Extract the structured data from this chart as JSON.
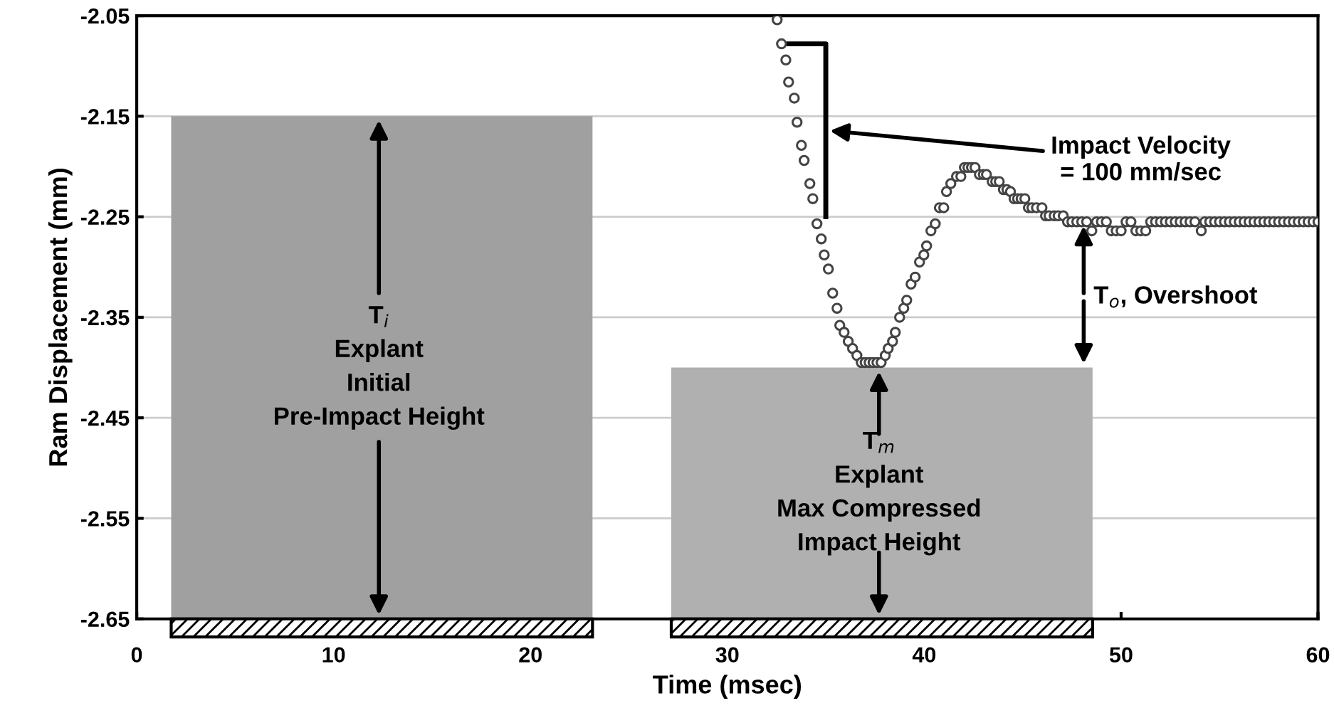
{
  "chart_data": {
    "type": "scatter",
    "xlabel": "Time (msec)",
    "ylabel": "Ram Displacement (mm)",
    "xlim": [
      0,
      60
    ],
    "xticks": [
      0,
      10,
      20,
      30,
      40,
      50,
      60
    ],
    "ylim": [
      -2.65,
      -2.05
    ],
    "yticks": [
      {
        "value": -2.65,
        "label": "-2.65"
      },
      {
        "value": -2.55,
        "label": "-2.55"
      },
      {
        "value": -2.45,
        "label": "-2.45"
      },
      {
        "value": -2.35,
        "label": "-2.35"
      },
      {
        "value": -2.25,
        "label": "-2.25"
      },
      {
        "value": -2.15,
        "label": "-2.15"
      },
      {
        "value": -2.05,
        "label": "-2.05"
      }
    ],
    "grid": "y",
    "series": [
      {
        "type": "bar",
        "x": [
          12.45,
          37.85
        ],
        "base": [
          -2.65,
          -2.65
        ],
        "values": [
          0.5,
          0.25
        ],
        "colors": [
          "#a0a0a0",
          "#b0b0b0"
        ]
      },
      {
        "type": "line",
        "color": "#000000",
        "x": [
          33.0,
          35.0,
          35.0
        ],
        "values": [
          -2.078,
          -2.078,
          -2.25
        ]
      },
      {
        "color": "#444444",
        "marker": "circle",
        "x": [
          32.53,
          32.75,
          32.97,
          33.11,
          33.4,
          33.54,
          33.76,
          33.9,
          34.19,
          34.34,
          34.55,
          34.77,
          34.92,
          35.13,
          35.35,
          35.57,
          35.71,
          35.93,
          36.14,
          36.36,
          36.58,
          36.8,
          37.0,
          37.2,
          37.4,
          37.6,
          37.81,
          38.02,
          38.17,
          38.39,
          38.53,
          38.75,
          38.96,
          39.11,
          39.33,
          39.54,
          39.76,
          39.98,
          40.12,
          40.34,
          40.56,
          40.77,
          40.99,
          41.13,
          41.35,
          41.64,
          41.86,
          42.04,
          42.22,
          42.4,
          42.58,
          42.8,
          43.0,
          43.16,
          43.45,
          43.63,
          43.81,
          44.02,
          44.2,
          44.38,
          44.56,
          44.74,
          44.92,
          45.11,
          45.29,
          45.47,
          45.7,
          45.98,
          46.16,
          46.34,
          46.6,
          46.8,
          47.06,
          47.28,
          47.5,
          47.75,
          48.0,
          48.25,
          48.51,
          48.75,
          49.0,
          49.25,
          49.5,
          49.75,
          50.0,
          50.25,
          50.5,
          50.75,
          51.0,
          51.25,
          51.5,
          51.75,
          52.0,
          52.25,
          52.5,
          52.75,
          53.0,
          53.25,
          53.5,
          53.75,
          54.07,
          54.25,
          54.5,
          54.75,
          55.0,
          55.25,
          55.5,
          55.75,
          56.0,
          56.25,
          56.5,
          56.75,
          57.0,
          57.25,
          57.5,
          57.75,
          58.0,
          58.25,
          58.5,
          58.75,
          59.0,
          59.25,
          59.5,
          59.75,
          60.0
        ],
        "values": [
          -2.054,
          -2.078,
          -2.094,
          -2.116,
          -2.132,
          -2.156,
          -2.179,
          -2.194,
          -2.217,
          -2.232,
          -2.257,
          -2.272,
          -2.288,
          -2.302,
          -2.326,
          -2.341,
          -2.358,
          -2.365,
          -2.374,
          -2.381,
          -2.388,
          -2.395,
          -2.395,
          -2.395,
          -2.395,
          -2.395,
          -2.395,
          -2.388,
          -2.381,
          -2.374,
          -2.365,
          -2.35,
          -2.341,
          -2.333,
          -2.317,
          -2.31,
          -2.295,
          -2.288,
          -2.279,
          -2.264,
          -2.257,
          -2.241,
          -2.241,
          -2.225,
          -2.217,
          -2.21,
          -2.21,
          -2.201,
          -2.201,
          -2.201,
          -2.201,
          -2.208,
          -2.208,
          -2.208,
          -2.215,
          -2.215,
          -2.215,
          -2.223,
          -2.223,
          -2.225,
          -2.232,
          -2.232,
          -2.232,
          -2.232,
          -2.241,
          -2.241,
          -2.241,
          -2.241,
          -2.249,
          -2.249,
          -2.249,
          -2.249,
          -2.249,
          -2.255,
          -2.255,
          -2.255,
          -2.255,
          -2.255,
          -2.264,
          -2.255,
          -2.255,
          -2.255,
          -2.264,
          -2.264,
          -2.264,
          -2.255,
          -2.255,
          -2.264,
          -2.264,
          -2.264,
          -2.255,
          -2.255,
          -2.255,
          -2.255,
          -2.255,
          -2.255,
          -2.255,
          -2.255,
          -2.255,
          -2.255,
          -2.264,
          -2.255,
          -2.255,
          -2.255,
          -2.255,
          -2.255,
          -2.255,
          -2.255,
          -2.255,
          -2.255,
          -2.255,
          -2.255,
          -2.255,
          -2.255,
          -2.255,
          -2.255,
          -2.255,
          -2.255,
          -2.255,
          -2.255,
          -2.255,
          -2.255,
          -2.255,
          -2.255,
          -2.255
        ]
      }
    ],
    "annotations": [
      "T$_{i}$\nExplant\nInitial\nPre-Impact Height",
      "T$_{m}$\nExplant\nMax Compressed\nImpact Height",
      "Impact Velocity\n= 100 mm/sec",
      {
        "text": "T$_{o}$, Overshoot",
        "x": 48.1,
        "y": -2.255
      }
    ]
  }
}
